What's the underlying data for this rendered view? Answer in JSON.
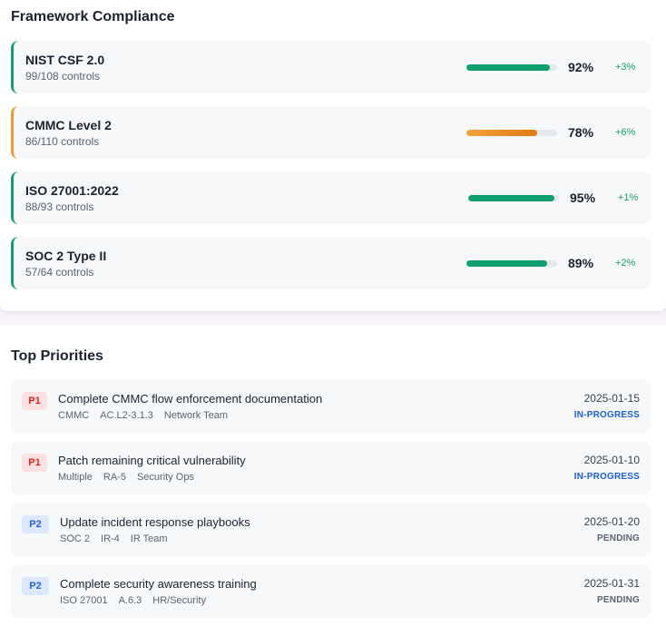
{
  "framework": {
    "title": "Framework Compliance",
    "items": [
      {
        "name": "NIST CSF 2.0",
        "controls": "99/108 controls",
        "pct": "92%",
        "progress": 0.92,
        "delta": "+3%",
        "color": "#0e9f6e"
      },
      {
        "name": "CMMC Level 2",
        "controls": "86/110 controls",
        "pct": "78%",
        "progress": 0.78,
        "delta": "+6%",
        "color": "#f09a2c"
      },
      {
        "name": "ISO 27001:2022",
        "controls": "88/93 controls",
        "pct": "95%",
        "progress": 0.95,
        "delta": "+1%",
        "color": "#0e9f6e"
      },
      {
        "name": "SOC 2 Type II",
        "controls": "57/64 controls",
        "pct": "89%",
        "progress": 0.89,
        "delta": "+2%",
        "color": "#0e9f6e"
      }
    ]
  },
  "priorities": {
    "title": "Top Priorities",
    "items": [
      {
        "badge": "P1",
        "title": "Complete CMMC flow enforcement documentation",
        "meta": [
          "CMMC",
          "AC.L2-3.1.3",
          "Network Team"
        ],
        "date": "2025-01-15",
        "status": "IN-PROGRESS"
      },
      {
        "badge": "P1",
        "title": "Patch remaining critical vulnerability",
        "meta": [
          "Multiple",
          "RA-5",
          "Security Ops"
        ],
        "date": "2025-01-10",
        "status": "IN-PROGRESS"
      },
      {
        "badge": "P2",
        "title": "Update incident response playbooks",
        "meta": [
          "SOC 2",
          "IR-4",
          "IR Team"
        ],
        "date": "2025-01-20",
        "status": "PENDING"
      },
      {
        "badge": "P2",
        "title": "Complete security awareness training",
        "meta": [
          "ISO 27001",
          "A.6.3",
          "HR/Security"
        ],
        "date": "2025-01-31",
        "status": "PENDING"
      }
    ]
  }
}
